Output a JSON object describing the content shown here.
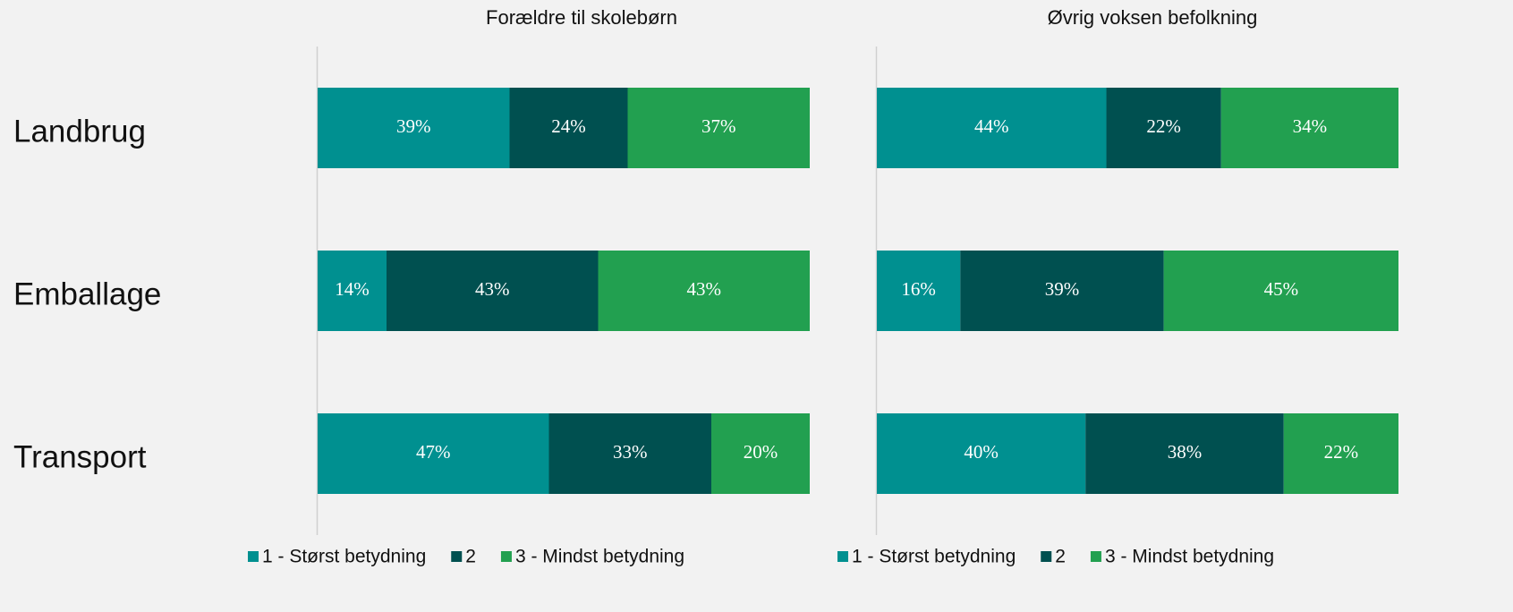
{
  "chart_data": [
    {
      "type": "stacked_barh",
      "title": "Forældre til skolebørn",
      "categories": [
        "Landbrug",
        "Emballage",
        "Transport"
      ],
      "xlim": [
        0,
        100
      ],
      "series": [
        {
          "name": "1 - Størst betydning",
          "color": "#009090",
          "values": [
            39,
            14,
            47
          ],
          "value_labels": [
            "39%",
            "14%",
            "47%"
          ]
        },
        {
          "name": "2",
          "color": "#005050",
          "values": [
            24,
            43,
            33
          ],
          "value_labels": [
            "24%",
            "43%",
            "33%"
          ]
        },
        {
          "name": "3 - Mindst betydning",
          "color": "#22a050",
          "values": [
            37,
            43,
            20
          ],
          "value_labels": [
            "37%",
            "43%",
            "20%"
          ]
        }
      ]
    },
    {
      "type": "stacked_barh",
      "title": "Øvrig voksen befolkning",
      "xlim": [
        0,
        100
      ],
      "series": [
        {
          "name": "1 - Størst betydning",
          "color": "#009090",
          "values": [
            44,
            16,
            40
          ],
          "value_labels": [
            "44%",
            "16%",
            "40%"
          ]
        },
        {
          "name": "2",
          "color": "#005050",
          "values": [
            22,
            39,
            38
          ],
          "value_labels": [
            "22%",
            "39%",
            "38%"
          ]
        },
        {
          "name": "3 - Mindst betydning",
          "color": "#22a050",
          "values": [
            34,
            45,
            22
          ],
          "value_labels": [
            "34%",
            "45%",
            "22%"
          ]
        }
      ]
    }
  ]
}
